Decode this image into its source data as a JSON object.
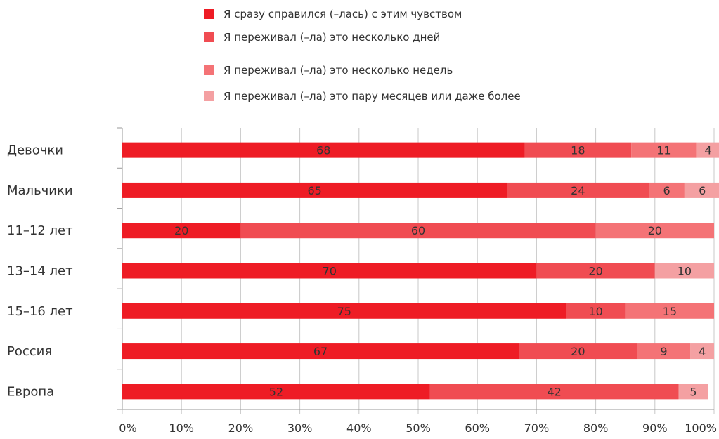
{
  "chart_data": {
    "type": "bar",
    "orientation": "horizontal",
    "stacked": true,
    "categories": [
      "Девочки",
      "Мальчики",
      "11–12 лет",
      "13–14 лет",
      "15–16 лет",
      "Россия",
      "Европа"
    ],
    "series": [
      {
        "name": "Я сразу справился (–лась) с этим чувством",
        "color": "#ee1c25",
        "values": [
          68,
          65,
          20,
          70,
          75,
          67,
          52
        ]
      },
      {
        "name": "Я переживал (–ла) это несколько дней",
        "color": "#f04c52",
        "values": [
          18,
          24,
          60,
          20,
          10,
          20,
          42
        ]
      },
      {
        "name": "Я переживал (–ла) это несколько недель",
        "color": "#f47376",
        "values": [
          11,
          6,
          20,
          0,
          15,
          9,
          0
        ]
      },
      {
        "name": "Я переживал (–ла) это пару месяцев или даже более",
        "color": "#f4a0a2",
        "values": [
          4,
          6,
          0,
          10,
          0,
          4,
          5
        ]
      }
    ],
    "x_ticks": [
      "0%",
      "10%",
      "20%",
      "30%",
      "40%",
      "50%",
      "60%",
      "70%",
      "80%",
      "90%",
      "100%"
    ],
    "xlim": [
      0,
      100
    ],
    "grid": "vertical",
    "legend_position": "top",
    "title": "",
    "xlabel": "",
    "ylabel": ""
  }
}
